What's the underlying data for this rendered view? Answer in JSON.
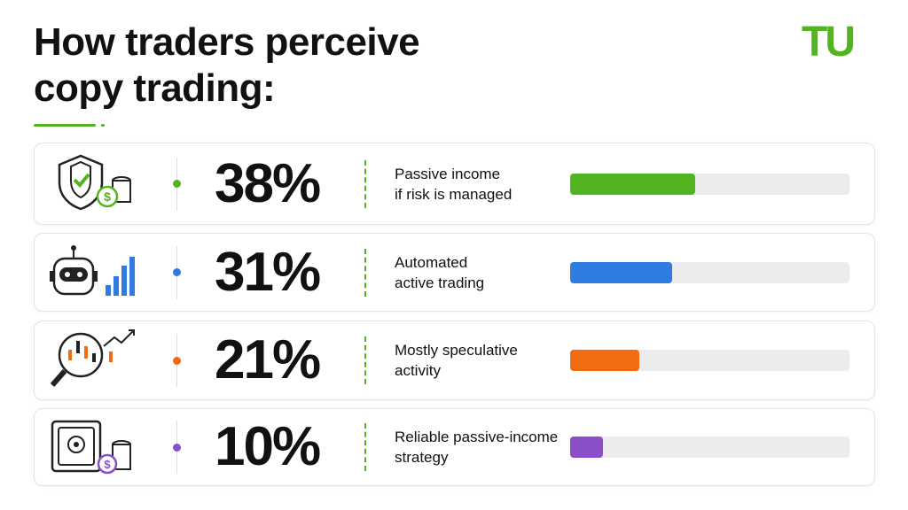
{
  "chart_data": {
    "type": "bar",
    "title": "How traders perceive\ncopy trading:",
    "logo": "TU",
    "categories": [
      "Passive income\nif risk is managed",
      "Automated\nactive trading",
      "Mostly speculative\nactivity",
      "Reliable passive-income\nstrategy"
    ],
    "values": [
      38,
      31,
      21,
      10
    ],
    "value_labels": [
      "38%",
      "31%",
      "21%",
      "10%"
    ],
    "colors": [
      "#52b520",
      "#2f7be0",
      "#f26b10",
      "#8a4fc8"
    ],
    "xlim": [
      0,
      85
    ]
  }
}
